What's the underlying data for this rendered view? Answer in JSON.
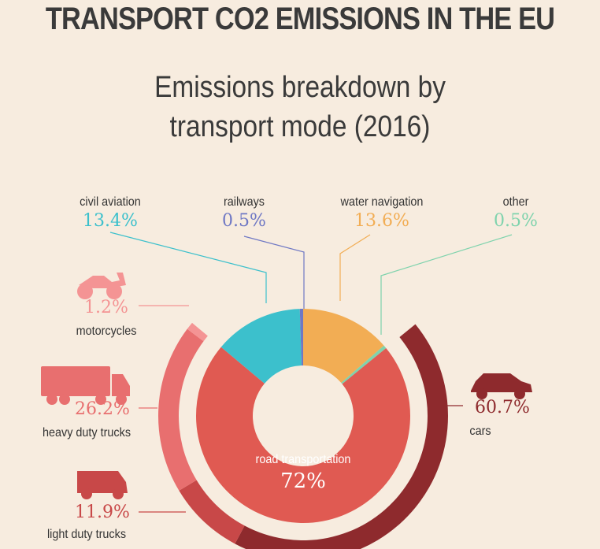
{
  "title": "TRANSPORT CO2 EMISSIONS IN THE EU",
  "subtitle_line1": "Emissions breakdown by",
  "subtitle_line2": "transport mode (2016)",
  "colors": {
    "civil_aviation": "#3cc0cc",
    "railways": "#6f78c4",
    "water_navigation": "#f2ad54",
    "other": "#7fd3ad",
    "road": "#e05a52",
    "cars": "#8e2a2d",
    "heavy_duty_trucks": "#e86f6f",
    "light_duty_trucks": "#c84848",
    "motorcycles": "#f49494"
  },
  "chart_data": [
    {
      "type": "pie",
      "slices": [
        {
          "label": "road transportation",
          "value": 72,
          "display": "72%"
        },
        {
          "label": "water navigation",
          "value": 13.6,
          "display": "13.6%"
        },
        {
          "label": "other",
          "value": 0.5,
          "display": "0.5%"
        },
        {
          "label": "civil aviation",
          "value": 13.4,
          "display": "13.4%"
        },
        {
          "label": "railways",
          "value": 0.5,
          "display": "0.5%"
        }
      ]
    },
    {
      "type": "pie",
      "parent": "road transportation",
      "slices": [
        {
          "label": "cars",
          "value": 60.7,
          "display": "60.7%",
          "icon": "car-icon"
        },
        {
          "label": "light duty trucks",
          "value": 11.9,
          "display": "11.9%",
          "icon": "van-icon"
        },
        {
          "label": "heavy duty trucks",
          "value": 26.2,
          "display": "26.2%",
          "icon": "truck-icon"
        },
        {
          "label": "motorcycles",
          "value": 1.2,
          "display": "1.2%",
          "icon": "motorcycle-icon"
        }
      ]
    }
  ]
}
